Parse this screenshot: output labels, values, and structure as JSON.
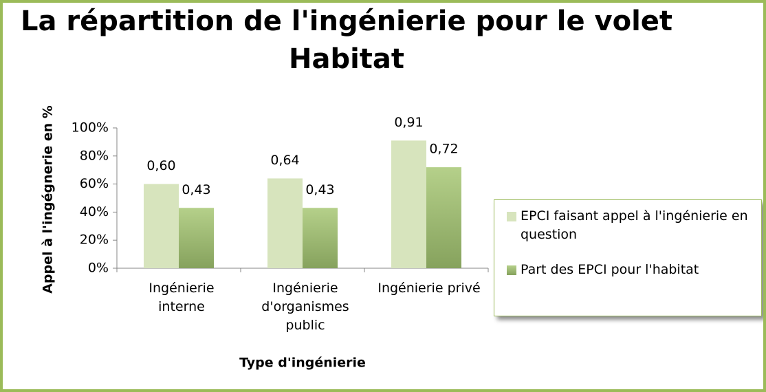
{
  "chart_data": {
    "type": "bar",
    "title": "La répartition de l'ingénierie pour le volet Habitat",
    "x_label": "Type d'ingénierie",
    "y_label": "Appel à l'ingégnerie en %",
    "categories": [
      "Ingénierie interne",
      "Ingénierie d'organismes public",
      "Ingénierie privé"
    ],
    "series": [
      {
        "name": "EPCI faisant appel à l'ingénierie en question",
        "color": "#d7e4bd",
        "values": [
          60,
          64,
          91
        ],
        "value_labels": [
          "0,60",
          "0,64",
          "0,91"
        ]
      },
      {
        "name": "Part des EPCI  pour l'habitat",
        "color": "#9bbb59",
        "values": [
          43,
          43,
          72
        ],
        "value_labels": [
          "0,43",
          "0,43",
          "0,72"
        ]
      }
    ],
    "ylim": [
      0,
      100
    ],
    "yticks": [
      {
        "value": 0,
        "label": "0%"
      },
      {
        "value": 20,
        "label": "20%"
      },
      {
        "value": 40,
        "label": "40%"
      },
      {
        "value": 60,
        "label": "60%"
      },
      {
        "value": 80,
        "label": "80%"
      },
      {
        "value": 100,
        "label": "100%"
      }
    ],
    "legend": "right"
  }
}
